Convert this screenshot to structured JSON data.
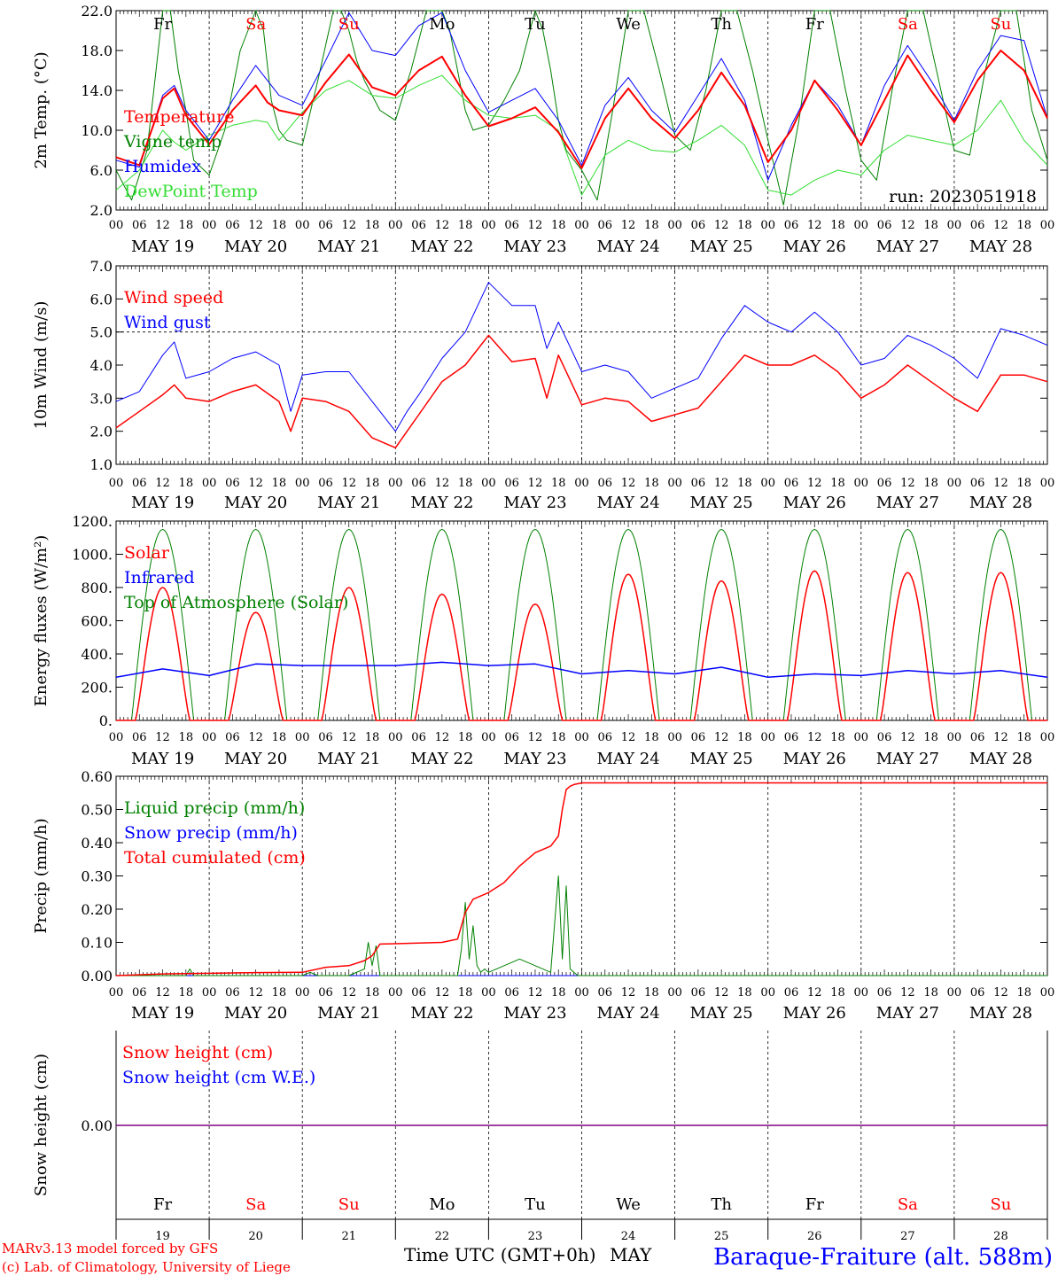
{
  "colors": {
    "red": "#ff0000",
    "green": "#008000",
    "blue": "#0000ff",
    "lightgreen": "#33dd33",
    "purple": "#800080",
    "weekend": "#ff0000",
    "weekday": "#000000"
  },
  "x_axis": {
    "hour_ticks": [
      "00",
      "06",
      "12",
      "18"
    ],
    "final_tick": "00",
    "day_labels": [
      "MAY 19",
      "MAY 20",
      "MAY 21",
      "MAY 22",
      "MAY 23",
      "MAY 24",
      "MAY 25",
      "MAY 26",
      "MAY 27",
      "MAY 28"
    ],
    "weekdays": [
      "Fr",
      "Sa",
      "Su",
      "Mo",
      "Tu",
      "We",
      "Th",
      "Fr",
      "Sa",
      "Su"
    ],
    "weekend_flags": [
      false,
      true,
      true,
      false,
      false,
      false,
      false,
      false,
      true,
      true
    ],
    "day_numbers": [
      "19",
      "20",
      "21",
      "22",
      "23",
      "24",
      "25",
      "26",
      "27",
      "28"
    ],
    "title": "Time UTC (GMT+0h)",
    "month": "MAY"
  },
  "run_label": "run: 2023051918",
  "footer": {
    "line1": "MARv3.13 model forced by GFS",
    "line2": "(c) Lab. of Climatology, University of Liege",
    "station": "Baraque-Fraiture (alt. 588m)"
  },
  "chart_data": [
    {
      "type": "line",
      "ylabel": "2m Temp. (°C)",
      "ylim": [
        2,
        22
      ],
      "yticks": [
        "2.0",
        "6.0",
        "10.0",
        "14.0",
        "18.0",
        "22.0"
      ],
      "x_unit": "hours since MAY 19 00 UTC",
      "series": [
        {
          "name": "Temperature",
          "color": "#ff0000",
          "x": [
            0,
            6,
            12,
            15,
            18,
            24,
            30,
            36,
            39,
            42,
            48,
            54,
            60,
            66,
            72,
            78,
            84,
            90,
            96,
            102,
            108,
            114,
            120,
            126,
            132,
            138,
            144,
            150,
            156,
            162,
            168,
            174,
            180,
            186,
            192,
            198,
            204,
            210,
            216,
            222,
            228,
            234,
            240
          ],
          "values": [
            7.3,
            6.5,
            13.2,
            14.2,
            11.5,
            8.6,
            12.0,
            14.5,
            12.8,
            12.0,
            11.5,
            14.8,
            17.6,
            14.3,
            13.5,
            16.0,
            17.4,
            13.5,
            10.4,
            11.2,
            12.3,
            9.8,
            6.2,
            11.2,
            14.2,
            11.2,
            9.2,
            12.0,
            15.8,
            12.5,
            6.8,
            10.0,
            15.0,
            12.0,
            8.5,
            13.0,
            17.5,
            14.0,
            10.8,
            15.0,
            18.0,
            16.0,
            11.2
          ]
        },
        {
          "name": "Vigne temp",
          "color": "#008000",
          "x": [
            0,
            4,
            8,
            12,
            14,
            16,
            18,
            20,
            24,
            28,
            32,
            36,
            38,
            40,
            42,
            44,
            48,
            52,
            56,
            58,
            60,
            62,
            64,
            66,
            68,
            72,
            76,
            80,
            84,
            86,
            88,
            90,
            92,
            96,
            100,
            104,
            108,
            110,
            112,
            114,
            116,
            120,
            124,
            128,
            132,
            136,
            140,
            144,
            148,
            152,
            156,
            160,
            164,
            168,
            172,
            176,
            180,
            184,
            188,
            192,
            196,
            200,
            204,
            208,
            212,
            216,
            220,
            224,
            228,
            232,
            236,
            240
          ],
          "values": [
            6.0,
            3.0,
            8.0,
            22.0,
            22.0,
            16.0,
            12.0,
            7.0,
            5.5,
            10.0,
            18.0,
            22.0,
            20.0,
            13.0,
            10.0,
            9.0,
            8.5,
            15.0,
            22.0,
            22.0,
            20.0,
            17.0,
            15.0,
            13.5,
            12.0,
            11.0,
            16.0,
            22.0,
            22.0,
            20.0,
            16.0,
            12.0,
            10.0,
            10.5,
            13.0,
            16.0,
            22.0,
            20.0,
            16.0,
            11.0,
            8.0,
            6.0,
            3.0,
            12.0,
            22.0,
            22.0,
            16.0,
            9.5,
            8.0,
            14.0,
            22.0,
            22.0,
            16.0,
            9.0,
            2.5,
            11.0,
            22.0,
            22.0,
            14.0,
            7.0,
            5.0,
            14.0,
            22.0,
            22.0,
            15.0,
            8.0,
            7.5,
            16.0,
            22.0,
            22.0,
            12.0,
            7.0
          ]
        },
        {
          "name": "Humidex",
          "color": "#0000ff",
          "x": [
            0,
            6,
            12,
            15,
            18,
            24,
            30,
            36,
            39,
            42,
            48,
            54,
            60,
            66,
            72,
            78,
            84,
            90,
            96,
            102,
            108,
            114,
            120,
            126,
            132,
            138,
            144,
            150,
            156,
            162,
            168,
            174,
            180,
            186,
            192,
            198,
            204,
            210,
            216,
            222,
            228,
            234,
            240
          ],
          "values": [
            7.0,
            6.3,
            13.5,
            14.5,
            12.0,
            9.0,
            13.0,
            16.5,
            15.0,
            13.5,
            12.5,
            17.0,
            21.8,
            18.0,
            17.5,
            20.5,
            21.8,
            16.0,
            11.8,
            13.0,
            14.2,
            11.0,
            6.5,
            12.5,
            15.3,
            12.0,
            9.8,
            13.5,
            17.2,
            13.0,
            5.0,
            10.5,
            15.0,
            12.5,
            8.5,
            14.5,
            18.5,
            15.0,
            11.0,
            16.0,
            19.5,
            19.0,
            11.2
          ]
        },
        {
          "name": "DewPoint Temp",
          "color": "#33dd33",
          "x": [
            0,
            6,
            12,
            15,
            18,
            24,
            30,
            36,
            39,
            42,
            48,
            54,
            60,
            66,
            72,
            78,
            84,
            90,
            96,
            102,
            108,
            114,
            120,
            126,
            132,
            138,
            144,
            150,
            156,
            162,
            168,
            174,
            180,
            186,
            192,
            198,
            204,
            210,
            216,
            222,
            228,
            234,
            240
          ],
          "values": [
            4.0,
            6.0,
            10.0,
            8.8,
            8.0,
            9.5,
            10.5,
            11.0,
            10.8,
            9.0,
            11.8,
            14.0,
            15.0,
            13.5,
            13.2,
            14.5,
            15.5,
            13.0,
            11.5,
            11.2,
            11.5,
            10.0,
            3.5,
            7.5,
            9.0,
            8.0,
            7.8,
            9.0,
            10.5,
            8.5,
            4.0,
            3.5,
            5.0,
            6.0,
            5.5,
            8.0,
            9.5,
            9.0,
            8.5,
            10.0,
            13.0,
            9.0,
            6.5
          ]
        }
      ]
    },
    {
      "type": "line",
      "ylabel": "10m Wind (m/s)",
      "ylim": [
        1,
        7
      ],
      "yticks": [
        "1.0",
        "2.0",
        "3.0",
        "4.0",
        "5.0",
        "6.0",
        "7.0"
      ],
      "reference_line": 5.0,
      "x_unit": "hours since MAY 19 00 UTC",
      "series": [
        {
          "name": "Wind speed",
          "color": "#ff0000",
          "x": [
            0,
            6,
            12,
            15,
            18,
            24,
            30,
            36,
            42,
            45,
            48,
            54,
            60,
            66,
            72,
            75,
            78,
            84,
            90,
            96,
            102,
            108,
            111,
            114,
            120,
            126,
            132,
            138,
            144,
            150,
            156,
            162,
            168,
            174,
            180,
            186,
            192,
            198,
            204,
            210,
            216,
            222,
            228,
            234,
            240
          ],
          "values": [
            2.1,
            2.6,
            3.1,
            3.4,
            3.0,
            2.9,
            3.2,
            3.4,
            2.9,
            2.0,
            3.0,
            2.9,
            2.6,
            1.8,
            1.5,
            2.0,
            2.5,
            3.5,
            4.0,
            4.9,
            4.1,
            4.2,
            3.0,
            4.3,
            2.8,
            3.0,
            2.9,
            2.3,
            2.5,
            2.7,
            3.5,
            4.3,
            4.0,
            4.0,
            4.3,
            3.8,
            3.0,
            3.4,
            4.0,
            3.5,
            3.0,
            2.6,
            3.7,
            3.7,
            3.5
          ]
        },
        {
          "name": "Wind gust",
          "color": "#0000ff",
          "x": [
            0,
            6,
            12,
            15,
            18,
            24,
            30,
            36,
            42,
            45,
            48,
            54,
            60,
            66,
            72,
            75,
            78,
            84,
            90,
            96,
            102,
            108,
            111,
            114,
            120,
            126,
            132,
            138,
            144,
            150,
            156,
            162,
            168,
            174,
            180,
            186,
            192,
            198,
            204,
            210,
            216,
            222,
            228,
            234,
            240
          ],
          "values": [
            2.9,
            3.2,
            4.3,
            4.7,
            3.6,
            3.8,
            4.2,
            4.4,
            4.0,
            2.6,
            3.7,
            3.8,
            3.8,
            2.9,
            2.0,
            2.6,
            3.1,
            4.2,
            5.0,
            6.5,
            5.8,
            5.8,
            4.5,
            5.3,
            3.8,
            4.0,
            3.8,
            3.0,
            3.3,
            3.6,
            4.8,
            5.8,
            5.3,
            5.0,
            5.6,
            5.0,
            4.0,
            4.2,
            4.9,
            4.6,
            4.2,
            3.6,
            5.1,
            4.9,
            4.6
          ]
        }
      ]
    },
    {
      "type": "line",
      "ylabel": "Energy fluxes (W/m²)",
      "ylim": [
        0,
        1200
      ],
      "yticks": [
        "0.",
        "200.",
        "400.",
        "600.",
        "800.",
        "1000.",
        "1200."
      ],
      "x_unit": "hours since MAY 19 00 UTC",
      "series": [
        {
          "name": "Solar",
          "color": "#ff0000",
          "daily_peaks": [
            800,
            650,
            800,
            760,
            700,
            880,
            840,
            900,
            890,
            890
          ]
        },
        {
          "name": "Infrared",
          "color": "#0000ff",
          "x": [
            0,
            12,
            24,
            36,
            48,
            60,
            72,
            84,
            96,
            108,
            120,
            132,
            144,
            156,
            168,
            180,
            192,
            204,
            216,
            228,
            240
          ],
          "values": [
            260,
            310,
            270,
            340,
            330,
            330,
            330,
            350,
            330,
            340,
            280,
            300,
            280,
            320,
            260,
            280,
            270,
            300,
            280,
            300,
            260
          ]
        },
        {
          "name": "Top of Atmosphere (Solar)",
          "color": "#008000",
          "daily_peak": 1150
        }
      ]
    },
    {
      "type": "line",
      "ylabel": "Precip (mm/h)",
      "ylim": [
        0,
        0.6
      ],
      "yticks": [
        "0.00",
        "0.10",
        "0.20",
        "0.30",
        "0.40",
        "0.50",
        "0.60"
      ],
      "x_unit": "hours since MAY 19 00 UTC",
      "series": [
        {
          "name": "Liquid precip (mm/h)",
          "color": "#008000",
          "x": [
            0,
            18,
            19,
            20,
            48,
            50,
            52,
            60,
            64,
            65,
            66,
            67,
            68,
            70,
            72,
            88,
            89,
            90,
            91,
            92,
            93,
            94,
            95,
            96,
            100,
            104,
            108,
            112,
            114,
            115,
            116,
            117,
            118,
            119,
            120,
            240
          ],
          "values": [
            0,
            0,
            0.02,
            0,
            0,
            0.01,
            0,
            0,
            0.02,
            0.1,
            0.03,
            0.09,
            0,
            0,
            0,
            0,
            0.08,
            0.22,
            0.05,
            0.15,
            0.03,
            0.01,
            0.02,
            0.01,
            0.03,
            0.05,
            0.03,
            0.01,
            0.3,
            0.05,
            0.27,
            0.02,
            0.01,
            0,
            0,
            0
          ]
        },
        {
          "name": "Snow precip (mm/h)",
          "color": "#0000ff",
          "x": [
            0,
            240
          ],
          "values": [
            0,
            0
          ]
        },
        {
          "name": "Total cumulated (cm)",
          "color": "#ff0000",
          "x": [
            0,
            12,
            24,
            36,
            48,
            54,
            60,
            64,
            66,
            68,
            72,
            84,
            88,
            90,
            92,
            96,
            100,
            104,
            108,
            112,
            114,
            115,
            116,
            117,
            118,
            120,
            240
          ],
          "values": [
            0,
            0.005,
            0.007,
            0.009,
            0.01,
            0.025,
            0.03,
            0.045,
            0.06,
            0.095,
            0.096,
            0.1,
            0.11,
            0.19,
            0.23,
            0.25,
            0.28,
            0.33,
            0.37,
            0.39,
            0.42,
            0.5,
            0.56,
            0.57,
            0.575,
            0.58,
            0.58
          ]
        }
      ]
    },
    {
      "type": "line",
      "ylabel": "Snow height (cm)",
      "yticks": [
        "0.00"
      ],
      "x_unit": "hours since MAY 19 00 UTC",
      "series": [
        {
          "name": "Snow height (cm)",
          "color": "#ff0000",
          "x": [
            0,
            240
          ],
          "values": [
            0,
            0
          ]
        },
        {
          "name": "Snow height (cm W.E.)",
          "color": "#0000ff",
          "x": [
            0,
            240
          ],
          "values": [
            0,
            0
          ]
        }
      ]
    }
  ]
}
